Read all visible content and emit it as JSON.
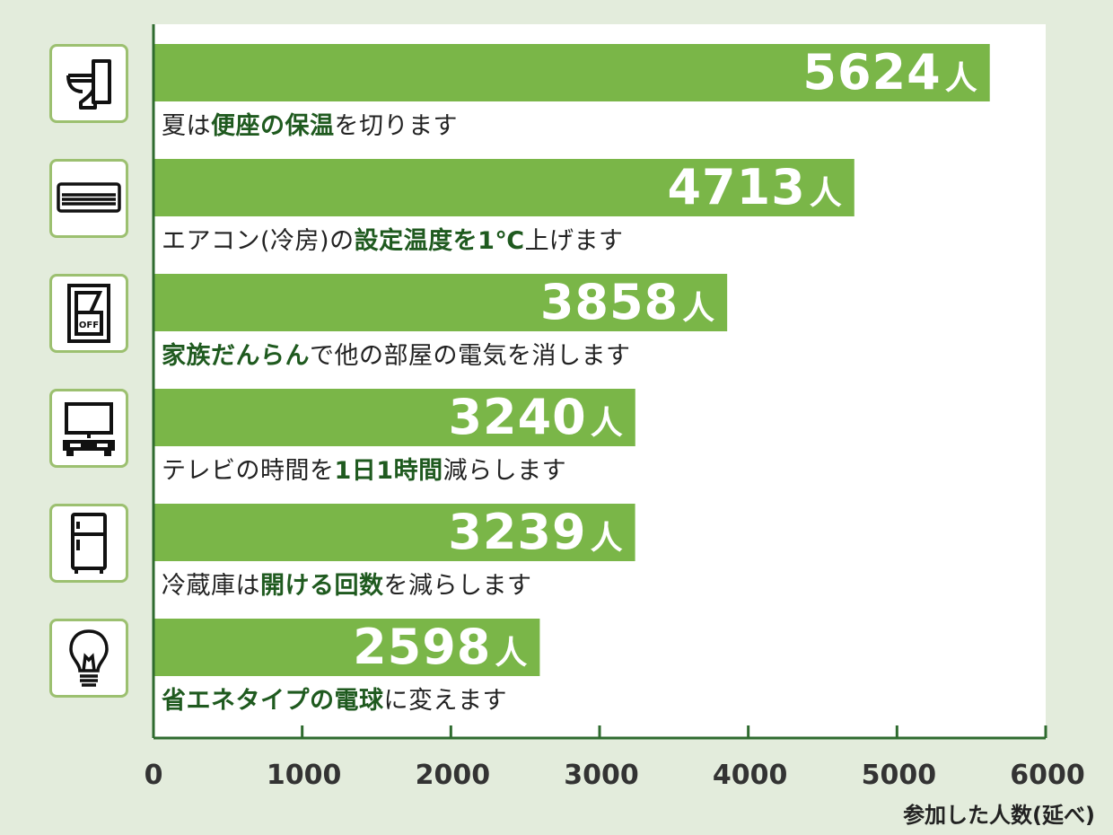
{
  "chart_data": {
    "type": "bar",
    "orientation": "horizontal",
    "categories": [
      "夏は便座の保温を切ります",
      "エアコン(冷房)の設定温度を1℃上げます",
      "家族だんらんで他の部屋の電気を消します",
      "テレビの時間を1日1時間減らします",
      "冷蔵庫は開ける回数を減らします",
      "省エネタイプの電球に変えます"
    ],
    "label_parts": [
      [
        {
          "t": "夏は",
          "b": false
        },
        {
          "t": "便座の保温",
          "b": true
        },
        {
          "t": "を切ります",
          "b": false
        }
      ],
      [
        {
          "t": "エアコン(冷房)の",
          "b": false
        },
        {
          "t": "設定温度を1℃",
          "b": true
        },
        {
          "t": "上げます",
          "b": false
        }
      ],
      [
        {
          "t": "家族だんらん",
          "b": true
        },
        {
          "t": "で他の部屋の電気を消します",
          "b": false
        }
      ],
      [
        {
          "t": "テレビの時間を",
          "b": false
        },
        {
          "t": "1日1時間",
          "b": true
        },
        {
          "t": "減らします",
          "b": false
        }
      ],
      [
        {
          "t": "冷蔵庫は",
          "b": false
        },
        {
          "t": "開ける回数",
          "b": true
        },
        {
          "t": "を減らします",
          "b": false
        }
      ],
      [
        {
          "t": "省エネタイプの電球",
          "b": true
        },
        {
          "t": "に変えます",
          "b": false
        }
      ]
    ],
    "values": [
      5624,
      4713,
      3858,
      3240,
      3239,
      2598
    ],
    "value_labels": [
      "5624",
      "4713",
      "3858",
      "3240",
      "3239",
      "2598"
    ],
    "value_unit": "人",
    "icons": [
      "toilet-icon",
      "air-conditioner-icon",
      "light-switch-off-icon",
      "tv-icon",
      "refrigerator-icon",
      "light-bulb-icon"
    ],
    "switch_text": "OFF",
    "xlim": [
      0,
      6000
    ],
    "x_ticks": [
      0,
      1000,
      2000,
      3000,
      4000,
      5000,
      6000
    ],
    "xlabel": "参加した人数(延べ)",
    "bar_color": "#7ab648",
    "axis_color": "#2f6b2f",
    "background_color": "#e3ecdc",
    "grid": false
  }
}
